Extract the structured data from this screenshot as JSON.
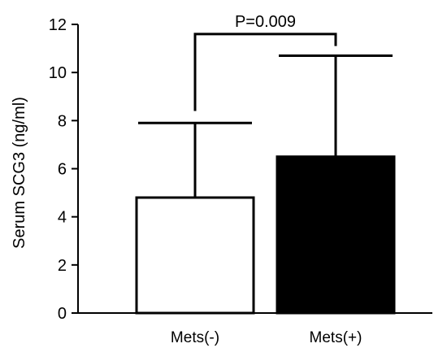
{
  "chart_data": {
    "type": "bar",
    "title": "",
    "xlabel": "",
    "ylabel": "Serum SCG3 (ng/ml)",
    "ylim": [
      0,
      12
    ],
    "yticks": [
      0,
      2,
      4,
      6,
      8,
      10,
      12
    ],
    "categories": [
      "Mets(-)",
      "Mets(+)"
    ],
    "values": [
      4.8,
      6.5
    ],
    "error_upper": [
      7.9,
      10.7
    ],
    "bar_colors": [
      "#ffffff",
      "#000000"
    ],
    "bar_edge_color": "#000000",
    "grid": false,
    "annotation": {
      "text": "P=0.009",
      "between": [
        "Mets(-)",
        "Mets(+)"
      ],
      "bracket_y": 11.6,
      "left_drop_to": 8.4,
      "right_drop_to": 11.1
    }
  }
}
